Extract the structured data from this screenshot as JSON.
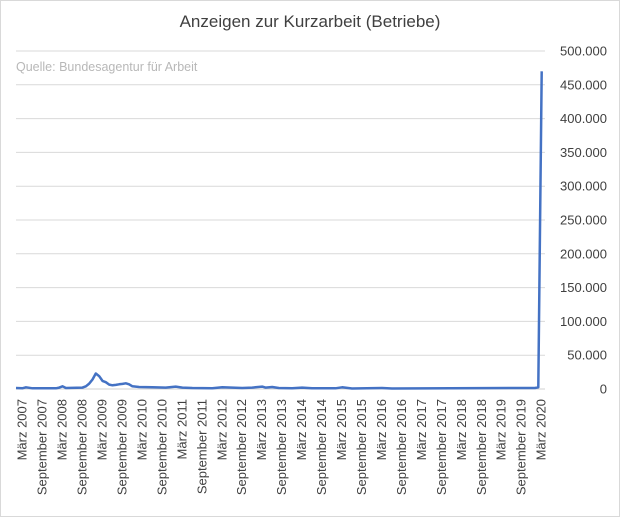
{
  "chart_data": {
    "type": "line",
    "title": "Anzeigen zur Kurzarbeit (Betriebe)",
    "source_note": "Quelle: Bundesagentur für Arbeit",
    "ylim": [
      0,
      500000
    ],
    "y_ticks": [
      "0",
      "50.000",
      "100.000",
      "150.000",
      "200.000",
      "250.000",
      "300.000",
      "350.000",
      "400.000",
      "450.000",
      "500.000"
    ],
    "y_tick_values": [
      0,
      50000,
      100000,
      150000,
      200000,
      250000,
      300000,
      350000,
      400000,
      450000,
      500000
    ],
    "x_ticks": [
      "März 2007",
      "September 2007",
      "März 2008",
      "September 2008",
      "März 2009",
      "September 2009",
      "März 2010",
      "September 2010",
      "März 2011",
      "September 2011",
      "März 2012",
      "September 2012",
      "März 2013",
      "September 2013",
      "März 2014",
      "September 2014",
      "März 2015",
      "September 2015",
      "März 2016",
      "September 2016",
      "März 2017",
      "September 2017",
      "März 2018",
      "September 2018",
      "März 2019",
      "September 2019",
      "März 2020"
    ],
    "grid": true,
    "line_color": "#4472c4",
    "series": [
      {
        "points": [
          [
            "2007-01",
            1500
          ],
          [
            "2007-03",
            1200
          ],
          [
            "2007-04",
            2500
          ],
          [
            "2007-06",
            1000
          ],
          [
            "2008-01",
            1000
          ],
          [
            "2008-02",
            2000
          ],
          [
            "2008-03",
            4000
          ],
          [
            "2008-04",
            1500
          ],
          [
            "2008-09",
            2000
          ],
          [
            "2008-10",
            4000
          ],
          [
            "2008-11",
            8000
          ],
          [
            "2008-12",
            14000
          ],
          [
            "2009-01",
            23000
          ],
          [
            "2009-02",
            19000
          ],
          [
            "2009-03",
            12000
          ],
          [
            "2009-04",
            10000
          ],
          [
            "2009-05",
            6500
          ],
          [
            "2009-06",
            5500
          ],
          [
            "2009-07",
            6000
          ],
          [
            "2009-08",
            7000
          ],
          [
            "2009-09",
            7500
          ],
          [
            "2009-10",
            8500
          ],
          [
            "2009-11",
            7000
          ],
          [
            "2009-12",
            4000
          ],
          [
            "2010-02",
            3000
          ],
          [
            "2010-06",
            2500
          ],
          [
            "2010-10",
            2000
          ],
          [
            "2011-01",
            3500
          ],
          [
            "2011-03",
            2000
          ],
          [
            "2011-06",
            1500
          ],
          [
            "2011-12",
            1000
          ],
          [
            "2012-03",
            2500
          ],
          [
            "2012-09",
            1500
          ],
          [
            "2012-12",
            2000
          ],
          [
            "2013-03",
            3500
          ],
          [
            "2013-04",
            2000
          ],
          [
            "2013-06",
            3000
          ],
          [
            "2013-08",
            1500
          ],
          [
            "2013-12",
            1200
          ],
          [
            "2014-03",
            2000
          ],
          [
            "2014-06",
            1000
          ],
          [
            "2015-01",
            1000
          ],
          [
            "2015-03",
            2500
          ],
          [
            "2015-06",
            800
          ],
          [
            "2016-03",
            1500
          ],
          [
            "2016-06",
            700
          ],
          [
            "2019-09",
            1500
          ],
          [
            "2020-01",
            1500
          ],
          [
            "2020-02",
            2500
          ],
          [
            "2020-03",
            470000
          ]
        ]
      }
    ]
  }
}
